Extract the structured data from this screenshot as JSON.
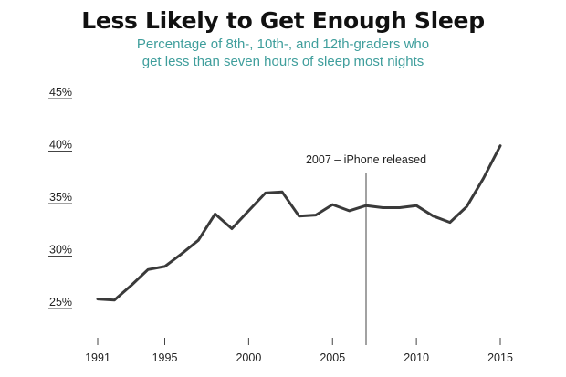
{
  "chart_data": {
    "type": "line",
    "title": "Less Likely to Get Enough Sleep",
    "subtitle_lines": [
      "Percentage of 8th-, 10th-, and 12th-graders who",
      "get less than seven hours of sleep most nights"
    ],
    "xlabel": "",
    "ylabel": "",
    "x_ticks": [
      "1991",
      "1995",
      "2000",
      "2005",
      "2010",
      "2015"
    ],
    "y_ticks": [
      "25%",
      "30%",
      "35%",
      "40%",
      "45%"
    ],
    "xlim": [
      1991,
      2015
    ],
    "ylim": [
      25,
      45
    ],
    "grid": false,
    "series": [
      {
        "x": [
          1991,
          1992,
          1993,
          1994,
          1995,
          1996,
          1997,
          1998,
          1999,
          2000,
          2001,
          2002,
          2003,
          2004,
          2005,
          2006,
          2007,
          2008,
          2009,
          2010,
          2011,
          2012,
          2013,
          2014,
          2015
        ],
        "values": [
          25.3,
          25.2,
          26.6,
          28.1,
          28.4,
          29.6,
          30.9,
          33.4,
          32.0,
          33.7,
          35.4,
          35.5,
          33.2,
          33.3,
          34.3,
          33.7,
          34.2,
          34.0,
          34.0,
          34.2,
          33.2,
          32.6,
          34.1,
          36.8,
          39.9
        ]
      }
    ],
    "annotations": [
      {
        "x": 2007,
        "label": "2007 – iPhone released"
      }
    ],
    "colors": {
      "line": "#3a3a3a",
      "subtitle": "#3f9e9c",
      "axis": "#444444"
    }
  }
}
